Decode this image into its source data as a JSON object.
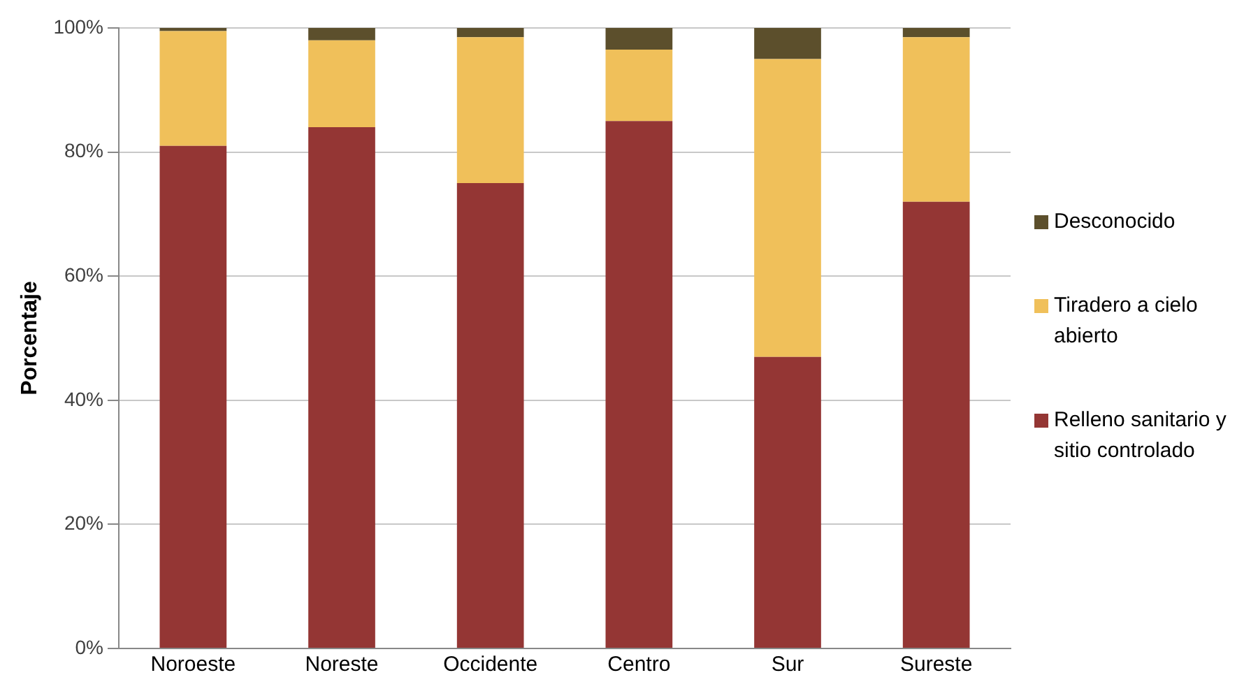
{
  "chart_data": {
    "type": "bar",
    "stacked": true,
    "ylabel": "Porcentaje",
    "categories": [
      "Noroeste",
      "Noreste",
      "Occidente",
      "Centro",
      "Sur",
      "Sureste"
    ],
    "series": [
      {
        "name": "Relleno sanitario y sitio controlado",
        "color": "#943634",
        "values": [
          81,
          84,
          75,
          85,
          47,
          72
        ]
      },
      {
        "name": "Tiradero a cielo abierto",
        "color": "#f0c05a",
        "values": [
          18.5,
          14,
          23.5,
          11.5,
          48,
          26.5
        ]
      },
      {
        "name": "Desconocido",
        "color": "#5c4f2c",
        "values": [
          0.5,
          2,
          1.5,
          3.5,
          5,
          1.5
        ]
      }
    ],
    "ylim": [
      0,
      100
    ],
    "yticks": [
      {
        "value": 0,
        "label": "0%"
      },
      {
        "value": 20,
        "label": "20%"
      },
      {
        "value": 40,
        "label": "40%"
      },
      {
        "value": 60,
        "label": "60%"
      },
      {
        "value": 80,
        "label": "80%"
      },
      {
        "value": 100,
        "label": "100%"
      }
    ],
    "grid": "y",
    "legend": "right"
  }
}
